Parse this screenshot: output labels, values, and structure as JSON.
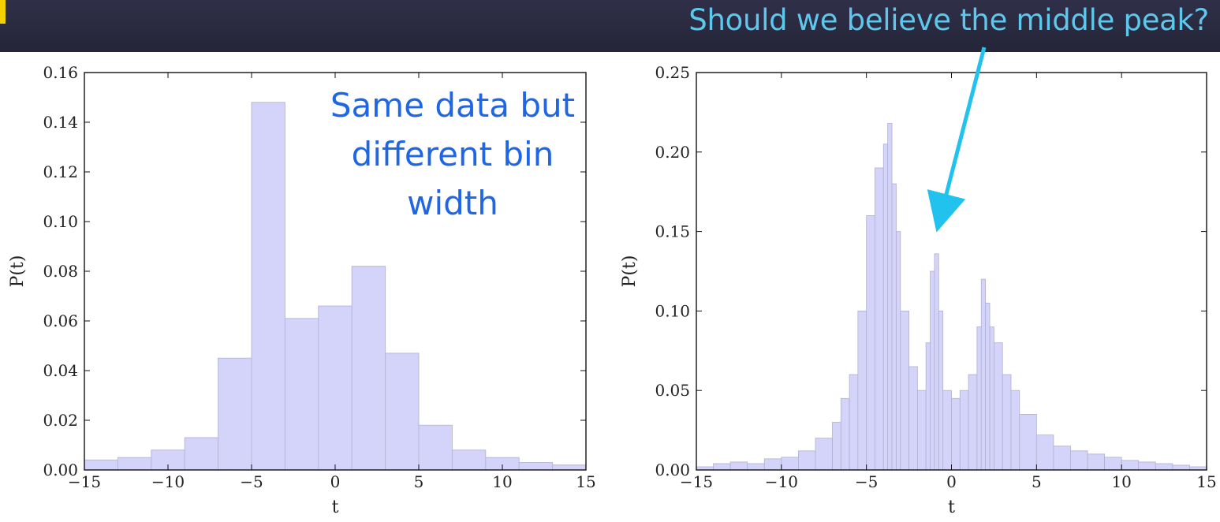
{
  "header": {
    "callout": "Should we believe the middle peak?",
    "accent_color": "#5ec7ec",
    "bar_color": "#2b2b42"
  },
  "annotation": {
    "lines": [
      "Same data but",
      "different bin",
      "width"
    ],
    "color": "#1e66e6"
  },
  "arrow": {
    "color": "#22c2ee"
  },
  "chart_data": [
    {
      "type": "bar",
      "style": "step-histogram",
      "fill_color": "#d4d4fb",
      "edge_color": "#b8b8da",
      "xlabel": "t",
      "ylabel": "P(t)",
      "xlim": [
        -15,
        15
      ],
      "ylim": [
        0,
        0.16
      ],
      "xticks": [
        -15,
        -10,
        -5,
        0,
        5,
        10,
        15
      ],
      "yticks": [
        0.0,
        0.02,
        0.04,
        0.06,
        0.08,
        0.1,
        0.12,
        0.14,
        0.16
      ],
      "ytick_decimals": 2,
      "bin_edges": [
        -15,
        -13,
        -11,
        -9,
        -7,
        -5,
        -3,
        -1,
        1,
        3,
        5,
        7,
        9,
        11,
        13,
        15
      ],
      "values": [
        0.004,
        0.005,
        0.008,
        0.013,
        0.045,
        0.148,
        0.061,
        0.066,
        0.082,
        0.047,
        0.018,
        0.008,
        0.005,
        0.003,
        0.002
      ]
    },
    {
      "type": "bar",
      "style": "step-histogram",
      "fill_color": "#d4d4fb",
      "edge_color": "#b0b0d0",
      "xlabel": "t",
      "ylabel": "P(t)",
      "xlim": [
        -15,
        15
      ],
      "ylim": [
        0,
        0.25
      ],
      "xticks": [
        -15,
        -10,
        -5,
        0,
        5,
        10,
        15
      ],
      "yticks": [
        0.0,
        0.05,
        0.1,
        0.15,
        0.2,
        0.25
      ],
      "ytick_decimals": 2,
      "x": [
        -15,
        -14,
        -13,
        -12,
        -11,
        -10,
        -9,
        -8,
        -7,
        -6.5,
        -6,
        -5.5,
        -5,
        -4.5,
        -4,
        -3.75,
        -3.5,
        -3.25,
        -3,
        -2.5,
        -2,
        -1.5,
        -1.25,
        -1,
        -0.75,
        -0.5,
        0,
        0.5,
        1,
        1.5,
        1.75,
        2,
        2.25,
        2.5,
        3,
        3.5,
        4,
        5,
        6,
        7,
        8,
        9,
        10,
        11,
        12,
        13,
        14,
        15
      ],
      "y": [
        0.002,
        0.004,
        0.005,
        0.004,
        0.007,
        0.008,
        0.012,
        0.02,
        0.03,
        0.045,
        0.06,
        0.1,
        0.16,
        0.19,
        0.205,
        0.218,
        0.18,
        0.15,
        0.1,
        0.065,
        0.05,
        0.08,
        0.125,
        0.136,
        0.1,
        0.05,
        0.045,
        0.05,
        0.06,
        0.09,
        0.12,
        0.105,
        0.09,
        0.08,
        0.06,
        0.05,
        0.035,
        0.022,
        0.015,
        0.012,
        0.01,
        0.008,
        0.006,
        0.005,
        0.004,
        0.003,
        0.002,
        0.001
      ]
    }
  ]
}
